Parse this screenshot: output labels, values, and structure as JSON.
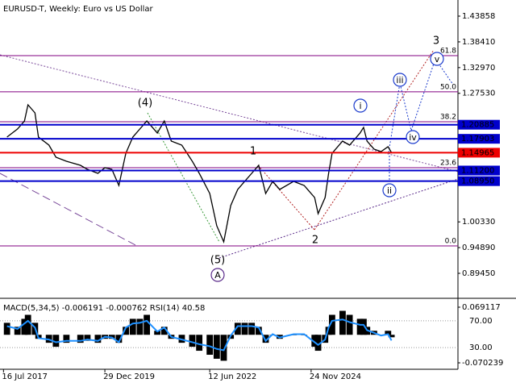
{
  "chart_data": {
    "type": "line",
    "title": "EURUSD-T, Weekly:  Euro vs US Dollar",
    "x": [
      "2017-08",
      "2017-11",
      "2018-01",
      "2018-02",
      "2018-04",
      "2018-05",
      "2018-08",
      "2018-10",
      "2019-01",
      "2019-05",
      "2019-07",
      "2019-10",
      "2019-12",
      "2020-02",
      "2020-04",
      "2020-06",
      "2020-08",
      "2020-10",
      "2020-12",
      "2021-03",
      "2021-05",
      "2021-07",
      "2021-10",
      "2022-01",
      "2022-03",
      "2022-06",
      "2022-08",
      "2022-10",
      "2022-12",
      "2023-02",
      "2023-04",
      "2023-06",
      "2023-08",
      "2023-10",
      "2023-12",
      "2024-02",
      "2024-06",
      "2024-09",
      "2024-12",
      "2025-01",
      "2025-03",
      "2025-04",
      "2025-05",
      "2025-08",
      "2025-10",
      "2026-01",
      "2026-02",
      "2026-03",
      "2026-05",
      "2026-07",
      "2026-09",
      "2026-10"
    ],
    "xlim": [
      "2017-06",
      "2028-05"
    ],
    "xticks": [
      {
        "value": "2017-07",
        "label": "16 Jul 2017"
      },
      {
        "value": "2019-12",
        "label": "29 Dec 2019"
      },
      {
        "value": "2022-06",
        "label": "12 Jun 2022"
      },
      {
        "value": "2024-11",
        "label": "24 Nov 2024"
      }
    ],
    "ylim": [
      0.84503,
      1.47269
    ],
    "yticks": [
      {
        "value": 1.43858,
        "label": "1.43858"
      },
      {
        "value": 1.3841,
        "label": "1.38410"
      },
      {
        "value": 1.3297,
        "label": "1.32970"
      },
      {
        "value": 1.2753,
        "label": "1.27530"
      },
      {
        "value": 1.0033,
        "label": "1.00330"
      },
      {
        "value": 0.9489,
        "label": "0.94890"
      },
      {
        "value": 0.8945,
        "label": "0.89450"
      }
    ],
    "series": [
      {
        "name": "EURUSD-T",
        "color": "#000000",
        "values": [
          1.1827,
          1.1998,
          1.2168,
          1.251,
          1.2339,
          1.1827,
          1.1657,
          1.1401,
          1.1316,
          1.123,
          1.1145,
          1.106,
          1.1179,
          1.1145,
          1.0804,
          1.1486,
          1.1827,
          1.1998,
          1.2168,
          1.1913,
          1.2168,
          1.1742,
          1.1657,
          1.1316,
          1.106,
          1.0634,
          0.9952,
          0.9611,
          1.0378,
          1.0719,
          1.089,
          1.106,
          1.123,
          1.0634,
          1.089,
          1.0719,
          1.089,
          1.0804,
          1.0548,
          1.0207,
          1.0548,
          1.106,
          1.1486,
          1.1742,
          1.1657,
          1.1913,
          1.2032,
          1.1742,
          1.1572,
          1.152,
          1.1623,
          1.1497
        ]
      }
    ],
    "levels": [
      {
        "value": 1.20885,
        "label": "1.20885",
        "color": "#0000cc"
      },
      {
        "value": 1.17903,
        "label": "1.17903",
        "color": "#0000cc"
      },
      {
        "value": 1.14965,
        "label": "1.14965",
        "color": "#ee0000"
      },
      {
        "value": 1.112,
        "label": "1.11200",
        "color": "#0000cc"
      },
      {
        "value": 1.0895,
        "label": "1.08950",
        "color": "#0000cc"
      }
    ],
    "fib_color": "#800080",
    "fib_levels": [
      {
        "value": 1.355,
        "label": "61.8"
      },
      {
        "value": 1.2784,
        "label": "50.0"
      },
      {
        "value": 1.2152,
        "label": "38.2"
      },
      {
        "value": 1.118,
        "label": "23.6"
      },
      {
        "value": 0.9525,
        "label": "0.0"
      }
    ],
    "annotations": [
      {
        "text": "(4)",
        "color": "#3a9a3a",
        "circled": false
      },
      {
        "text": "(5)",
        "color": "#3a9a3a",
        "circled": false
      },
      {
        "text": "A",
        "color": "#5a2a8a",
        "circled": true
      },
      {
        "text": "1",
        "color": "#b22222",
        "circled": false
      },
      {
        "text": "2",
        "color": "#b22222",
        "circled": false
      },
      {
        "text": "3",
        "color": "#a0522d",
        "circled": false
      },
      {
        "text": "i",
        "color": "#1a3acc",
        "circled": true
      },
      {
        "text": "ii",
        "color": "#1a3acc",
        "circled": true
      },
      {
        "text": "iii",
        "color": "#1a3acc",
        "circled": true
      },
      {
        "text": "iv",
        "color": "#1a3acc",
        "circled": true
      },
      {
        "text": "v",
        "color": "#1a3acc",
        "circled": true
      }
    ],
    "indicator": {
      "title": "MACD(5,34,5) -0.006191 -0.000762 RSI(14) 40.58",
      "macd": {
        "name": "MACD",
        "color": "#000000",
        "ylim": [
          -0.0823,
          0.0853
        ],
        "yticks": [
          0.069117,
          -0.070239
        ],
        "values": [
          0.03,
          0.02,
          0.04,
          0.05,
          0.03,
          -0.01,
          -0.02,
          -0.03,
          -0.02,
          -0.02,
          -0.015,
          -0.02,
          -0.01,
          -0.01,
          -0.02,
          0.02,
          0.04,
          0.04,
          0.05,
          0.01,
          0.02,
          -0.01,
          -0.02,
          -0.03,
          -0.04,
          -0.05,
          -0.06,
          -0.065,
          -0.01,
          0.03,
          0.03,
          0.03,
          0.02,
          -0.02,
          0,
          -0.01,
          0,
          0,
          -0.03,
          -0.04,
          -0.02,
          0.02,
          0.05,
          0.06,
          0.05,
          0.04,
          0.04,
          0.02,
          0.01,
          0,
          0.01,
          -0.006191
        ]
      },
      "rsi": {
        "name": "RSI",
        "color": "#1e90ff",
        "ylim": [
          0,
          100
        ],
        "yticks": [
          {
            "value": 70,
            "label": "70.00"
          },
          {
            "value": 30,
            "label": "30.00"
          }
        ],
        "values": [
          62,
          58,
          66,
          70,
          60,
          44,
          42,
          38,
          40,
          40,
          42,
          40,
          46,
          45,
          38,
          60,
          66,
          67,
          70,
          54,
          60,
          46,
          42,
          38,
          35,
          32,
          28,
          26,
          48,
          62,
          62,
          62,
          60,
          40,
          50,
          45,
          50,
          50,
          38,
          34,
          42,
          60,
          70,
          72,
          68,
          64,
          64,
          56,
          52,
          48,
          50,
          40.58
        ]
      }
    }
  }
}
